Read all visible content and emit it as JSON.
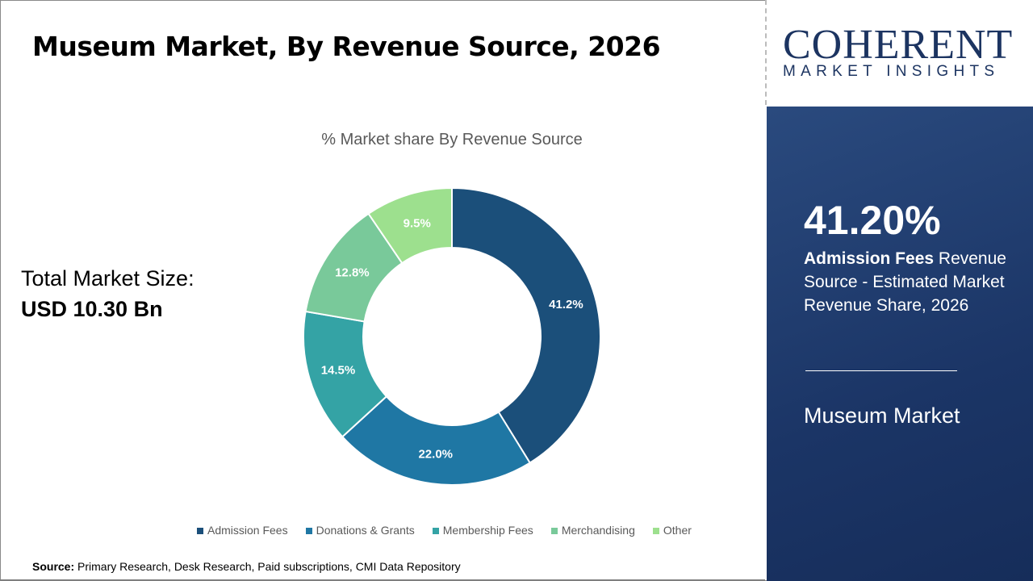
{
  "title": "Museum Market, By Revenue Source, 2026",
  "total": {
    "label": "Total Market Size:",
    "value": "USD 10.30 Bn"
  },
  "logo": {
    "brand": "COHERENT",
    "tagline": "MARKET INSIGHTS"
  },
  "panel": {
    "percent": "41.20%",
    "desc_bold": "Admission Fees",
    "desc_rest": " Revenue Source - Estimated Market Revenue Share, 2026",
    "market": "Museum Market"
  },
  "source": {
    "label": "Source:",
    "text": " Primary Research, Desk Research, Paid subscriptions, CMI Data Repository"
  },
  "chart_data": {
    "type": "pie",
    "donut": true,
    "title": "% Market share By Revenue Source",
    "categories": [
      "Admission Fees",
      "Donations & Grants",
      "Membership Fees",
      "Merchandising",
      "Other"
    ],
    "values": [
      41.2,
      22.0,
      14.5,
      12.8,
      9.5
    ],
    "labels": [
      "41.2%",
      "22.0%",
      "14.5%",
      "12.8%",
      "9.5%"
    ],
    "colors": [
      "#1b4f7a",
      "#1f77a4",
      "#34a3a5",
      "#79c99a",
      "#9de08e"
    ],
    "legend": "bottom"
  }
}
